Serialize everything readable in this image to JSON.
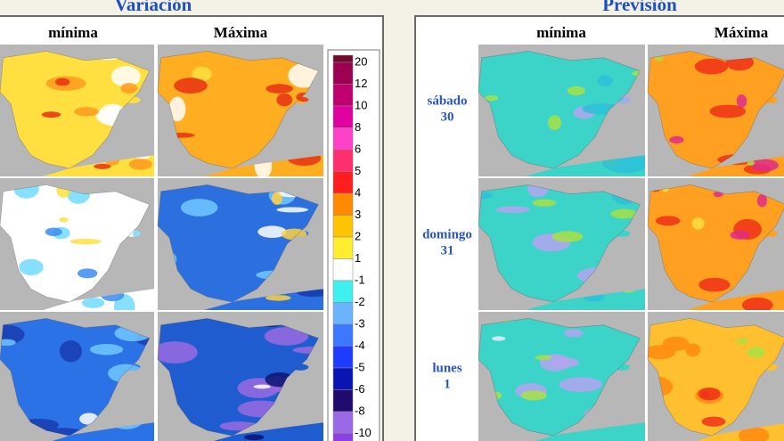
{
  "left": {
    "title": "Variación",
    "columns": [
      "mínima",
      "Máxima"
    ],
    "legend": {
      "labels": [
        20,
        12,
        10,
        8,
        6,
        5,
        4,
        3,
        2,
        1,
        -1,
        -2,
        -3,
        -4,
        -5,
        -6,
        -8,
        -10
      ],
      "colors": [
        "#6e0a2a",
        "#9c0050",
        "#c0006e",
        "#e000a0",
        "#ff40c8",
        "#ff2e6e",
        "#ff1e1e",
        "#ff8a00",
        "#ffc400",
        "#ffee30",
        "#ffffff",
        "#40f0f0",
        "#6ab4ff",
        "#3c78ff",
        "#1e3cff",
        "#0a14b4",
        "#200a6e",
        "#9a6ae6",
        "#8a40e6"
      ]
    }
  },
  "right": {
    "title": "Previsión",
    "columns": [
      "mínima",
      "Máxima"
    ],
    "rows": [
      [
        "sábado",
        "30"
      ],
      [
        "domingo",
        "31"
      ],
      [
        "lunes",
        "1"
      ]
    ]
  }
}
